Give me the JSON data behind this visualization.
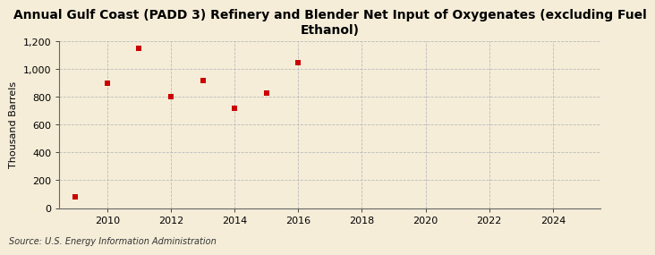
{
  "title": "Annual Gulf Coast (PADD 3) Refinery and Blender Net Input of Oxygenates (excluding Fuel\nEthanol)",
  "ylabel": "Thousand Barrels",
  "source": "Source: U.S. Energy Information Administration",
  "x_values": [
    2009,
    2010,
    2011,
    2012,
    2013,
    2014,
    2015,
    2016
  ],
  "y_values": [
    80,
    900,
    1150,
    800,
    920,
    720,
    830,
    1050
  ],
  "xlim": [
    2008.5,
    2025.5
  ],
  "ylim": [
    0,
    1200
  ],
  "yticks": [
    0,
    200,
    400,
    600,
    800,
    1000,
    1200
  ],
  "xticks": [
    2010,
    2012,
    2014,
    2016,
    2018,
    2020,
    2022,
    2024
  ],
  "marker_color": "#cc0000",
  "marker": "s",
  "marker_size": 4,
  "background_color": "#f5edd8",
  "grid_color": "#bbbbbb",
  "title_fontsize": 10,
  "label_fontsize": 8,
  "tick_fontsize": 8,
  "source_fontsize": 7
}
